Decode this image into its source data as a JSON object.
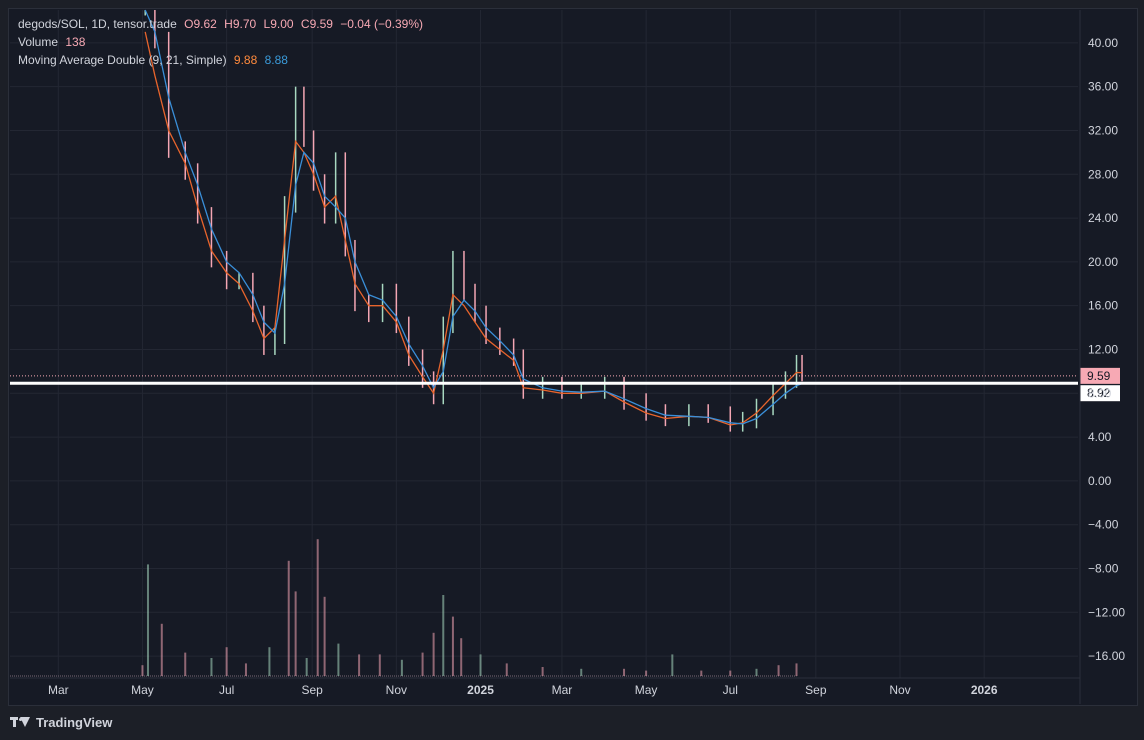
{
  "header": {
    "symbol": "degods/SOL, 1D, tensor.trade",
    "open": "O9.62",
    "high": "H9.70",
    "low": "L9.00",
    "close": "C9.59",
    "change": "−0.04 (−0.39%)",
    "volume_label": "Volume",
    "volume_value": "138",
    "ma_label": "Moving Average Double (9, 21, Simple)",
    "ma_fast_value": "9.88",
    "ma_slow_value": "8.88"
  },
  "footer": {
    "brand": "TradingView"
  },
  "colors": {
    "background": "#161a25",
    "up": "#a8d8c0",
    "down": "#f4a6b4",
    "ma_fast": "#e8642c",
    "ma_slow": "#3a8fd9",
    "price_label": "#f7a9b4"
  },
  "chart_data": {
    "type": "line",
    "ylim": [
      -18,
      43
    ],
    "y_ticks": [
      "40.00",
      "36.00",
      "32.00",
      "28.00",
      "24.00",
      "20.00",
      "16.00",
      "12.00",
      "8.00",
      "4.00",
      "0.00",
      "−4.00",
      "−8.00",
      "−12.00",
      "−16.00"
    ],
    "y_tick_values": [
      40,
      36,
      32,
      28,
      24,
      20,
      16,
      12,
      8,
      4,
      0,
      -4,
      -8,
      -12,
      -16
    ],
    "x_ticks": [
      "Mar",
      "May",
      "Jul",
      "Sep",
      "Nov",
      "2025",
      "Mar",
      "May",
      "Jul",
      "Sep",
      "Nov",
      "2026"
    ],
    "x_tick_dates": [
      "2024-03-01",
      "2024-05-01",
      "2024-07-01",
      "2024-09-01",
      "2024-11-01",
      "2025-01-01",
      "2025-03-01",
      "2025-05-01",
      "2025-07-01",
      "2025-09-01",
      "2025-11-01",
      "2026-01-01"
    ],
    "x_range": [
      "2024-01-26",
      "2026-03-10"
    ],
    "last_price_label": "9.59",
    "last_price": 9.59,
    "horizontal_line_label": "8.92",
    "horizontal_line": 8.92,
    "price_series": {
      "dates": [
        "2024-05-03",
        "2024-05-10",
        "2024-05-20",
        "2024-06-01",
        "2024-06-10",
        "2024-06-20",
        "2024-07-01",
        "2024-07-10",
        "2024-07-20",
        "2024-07-28",
        "2024-08-05",
        "2024-08-12",
        "2024-08-20",
        "2024-08-26",
        "2024-09-02",
        "2024-09-10",
        "2024-09-18",
        "2024-09-25",
        "2024-10-02",
        "2024-10-12",
        "2024-10-22",
        "2024-11-01",
        "2024-11-10",
        "2024-11-20",
        "2024-11-28",
        "2024-12-05",
        "2024-12-12",
        "2024-12-20",
        "2024-12-28",
        "2025-01-05",
        "2025-01-15",
        "2025-01-25",
        "2025-02-01",
        "2025-02-15",
        "2025-03-01",
        "2025-03-15",
        "2025-04-01",
        "2025-04-15",
        "2025-05-01",
        "2025-05-15",
        "2025-06-01",
        "2025-06-15",
        "2025-07-01",
        "2025-07-10",
        "2025-07-20",
        "2025-08-01",
        "2025-08-10",
        "2025-08-18",
        "2025-08-22"
      ],
      "values": [
        43,
        40,
        30,
        28,
        24,
        20,
        18,
        18,
        15,
        12,
        13,
        25,
        35,
        31,
        27,
        24,
        29,
        21,
        16,
        15,
        17,
        14,
        11,
        9,
        7.5,
        14,
        20,
        17,
        15,
        13,
        12,
        11,
        8,
        8.5,
        8,
        8,
        8.5,
        7,
        6,
        5.5,
        6,
        5.8,
        5,
        5.3,
        6.5,
        8,
        9,
        10.5,
        9.6
      ]
    },
    "series": [
      {
        "name": "9",
        "values": [
          41,
          37,
          32,
          29,
          25,
          21,
          19,
          18,
          15.5,
          13,
          14,
          22,
          31,
          30,
          28,
          25,
          26,
          22,
          18,
          16,
          16,
          14.5,
          11.5,
          9.5,
          8,
          12,
          17,
          16,
          14.5,
          13,
          12,
          11,
          8.5,
          8.3,
          8,
          8,
          8.2,
          7.2,
          6.2,
          5.7,
          5.9,
          5.8,
          5.1,
          5.3,
          6.2,
          7.8,
          8.9,
          9.9,
          9.88
        ]
      },
      {
        "name": "21",
        "values": [
          43,
          41,
          35,
          30,
          27,
          23,
          20,
          19,
          17,
          14.5,
          13.5,
          18,
          27,
          30,
          29,
          26,
          25,
          24,
          20,
          17,
          16.5,
          15,
          12.5,
          10.5,
          8.5,
          10,
          15,
          16.5,
          15.5,
          14,
          12.8,
          11.5,
          9.3,
          8.5,
          8.2,
          8.1,
          8.2,
          7.5,
          6.6,
          6,
          5.9,
          5.8,
          5.3,
          5.2,
          5.7,
          7,
          8,
          8.7,
          8.88
        ]
      }
    ],
    "volume": {
      "dates": [
        "2024-05-01",
        "2024-05-05",
        "2024-05-15",
        "2024-06-01",
        "2024-06-20",
        "2024-07-01",
        "2024-07-15",
        "2024-08-01",
        "2024-08-15",
        "2024-08-20",
        "2024-08-28",
        "2024-09-05",
        "2024-09-10",
        "2024-09-20",
        "2024-10-05",
        "2024-10-20",
        "2024-11-05",
        "2024-11-20",
        "2024-11-28",
        "2024-12-05",
        "2024-12-12",
        "2024-12-18",
        "2025-01-01",
        "2025-01-20",
        "2025-02-15",
        "2025-03-15",
        "2025-04-15",
        "2025-05-01",
        "2025-05-20",
        "2025-06-10",
        "2025-07-01",
        "2025-07-20",
        "2025-08-05",
        "2025-08-18"
      ],
      "values": [
        60,
        620,
        290,
        130,
        100,
        160,
        70,
        160,
        640,
        470,
        100,
        760,
        440,
        180,
        120,
        120,
        90,
        130,
        240,
        450,
        330,
        210,
        120,
        70,
        50,
        40,
        40,
        30,
        120,
        30,
        30,
        40,
        60,
        70
      ],
      "scale_max": 1000
    }
  }
}
